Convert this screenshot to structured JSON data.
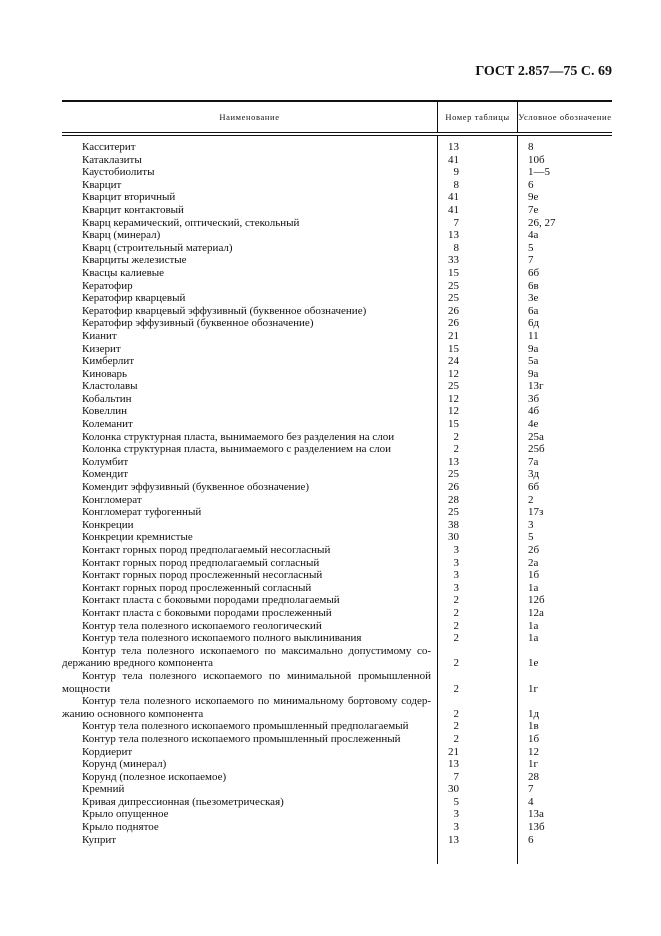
{
  "page_header": "ГОСТ 2.857—75 С. 69",
  "table": {
    "headers": {
      "name": "Наименование",
      "table_no": "Номер таблицы",
      "symbol": "Условное обозначение"
    },
    "rows": [
      {
        "name": [
          "Касситерит"
        ],
        "table_no": "13",
        "symbol": "8"
      },
      {
        "name": [
          "Катаклазиты"
        ],
        "table_no": "41",
        "symbol": "10б"
      },
      {
        "name": [
          "Каустобиолиты"
        ],
        "table_no": "9",
        "symbol": "1—5"
      },
      {
        "name": [
          "Кварцит"
        ],
        "table_no": "8",
        "symbol": "6"
      },
      {
        "name": [
          "Кварцит вторичный"
        ],
        "table_no": "41",
        "symbol": "9е"
      },
      {
        "name": [
          "Кварцит контактовый"
        ],
        "table_no": "41",
        "symbol": "7е"
      },
      {
        "name": [
          "Кварц керамический, оптический, стекольный"
        ],
        "table_no": "7",
        "symbol": "26, 27"
      },
      {
        "name": [
          "Кварц (минерал)"
        ],
        "table_no": "13",
        "symbol": "4а"
      },
      {
        "name": [
          "Кварц (строительный материал)"
        ],
        "table_no": "8",
        "symbol": "5"
      },
      {
        "name": [
          "Кварциты железистые"
        ],
        "table_no": "33",
        "symbol": "7"
      },
      {
        "name": [
          "Квасцы калиевые"
        ],
        "table_no": "15",
        "symbol": "6б"
      },
      {
        "name": [
          "Кератофир"
        ],
        "table_no": "25",
        "symbol": "6в"
      },
      {
        "name": [
          "Кератофир кварцевый"
        ],
        "table_no": "25",
        "symbol": "3е"
      },
      {
        "name": [
          "Кератофир кварцевый эффузивный (буквенное обозначение)"
        ],
        "table_no": "26",
        "symbol": "6а"
      },
      {
        "name": [
          "Кератофир эффузивный (буквенное обозначение)"
        ],
        "table_no": "26",
        "symbol": "6д"
      },
      {
        "name": [
          "Кианит"
        ],
        "table_no": "21",
        "symbol": "11"
      },
      {
        "name": [
          "Кизерит"
        ],
        "table_no": "15",
        "symbol": "9а"
      },
      {
        "name": [
          "Кимберлит"
        ],
        "table_no": "24",
        "symbol": "5а"
      },
      {
        "name": [
          "Киноварь"
        ],
        "table_no": "12",
        "symbol": "9а"
      },
      {
        "name": [
          "Кластолавы"
        ],
        "table_no": "25",
        "symbol": "13г"
      },
      {
        "name": [
          "Кобальтин"
        ],
        "table_no": "12",
        "symbol": "3б"
      },
      {
        "name": [
          "Ковеллин"
        ],
        "table_no": "12",
        "symbol": "4б"
      },
      {
        "name": [
          "Колеманит"
        ],
        "table_no": "15",
        "symbol": "4е"
      },
      {
        "name": [
          "Колонка структурная пласта, вынимаемого без разделения на слои"
        ],
        "table_no": "2",
        "symbol": "25а"
      },
      {
        "name": [
          "Колонка структурная пласта, вынимаемого с разделением на слои"
        ],
        "table_no": "2",
        "symbol": "25б"
      },
      {
        "name": [
          "Колумбит"
        ],
        "table_no": "13",
        "symbol": "7а"
      },
      {
        "name": [
          "Комендит"
        ],
        "table_no": "25",
        "symbol": "3д"
      },
      {
        "name": [
          "Комендит эффузивный (буквенное обозначение)"
        ],
        "table_no": "26",
        "symbol": "6б"
      },
      {
        "name": [
          "Конгломерат"
        ],
        "table_no": "28",
        "symbol": "2"
      },
      {
        "name": [
          "Конгломерат туфогенный"
        ],
        "table_no": "25",
        "symbol": "17з"
      },
      {
        "name": [
          "Конкреции"
        ],
        "table_no": "38",
        "symbol": "3"
      },
      {
        "name": [
          "Конкреции кремнистые"
        ],
        "table_no": "30",
        "symbol": "5"
      },
      {
        "name": [
          "Контакт горных пород предполагаемый несогласный"
        ],
        "table_no": "3",
        "symbol": "2б"
      },
      {
        "name": [
          "Контакт горных пород предполагаемый согласный"
        ],
        "table_no": "3",
        "symbol": "2а"
      },
      {
        "name": [
          "Контакт горных пород прослеженный несогласный"
        ],
        "table_no": "3",
        "symbol": "1б"
      },
      {
        "name": [
          "Контакт горных пород прослеженный согласный"
        ],
        "table_no": "3",
        "symbol": "1а"
      },
      {
        "name": [
          "Контакт пласта с боковыми породами предполагаемый"
        ],
        "table_no": "2",
        "symbol": "12б"
      },
      {
        "name": [
          "Контакт пласта с боковыми породами прослеженный"
        ],
        "table_no": "2",
        "symbol": "12а"
      },
      {
        "name": [
          "Контур тела полезного ископаемого геологический"
        ],
        "table_no": "2",
        "symbol": "1а"
      },
      {
        "name": [
          "Контур тела полезного ископаемого полного выклинивания"
        ],
        "table_no": "2",
        "symbol": "1а"
      },
      {
        "name": [
          "Контур тела полезного ископаемого по максимально допустимому со-",
          "держанию вредного компонента"
        ],
        "table_no": "2",
        "symbol": "1е"
      },
      {
        "name": [
          "Контур тела полезного ископаемого по минимальной промышленной",
          "мощности"
        ],
        "table_no": "2",
        "symbol": "1г"
      },
      {
        "name": [
          "Контур тела полезного ископаемого по минимальному бортовому содер-",
          "жанию основного компонента"
        ],
        "table_no": "2",
        "symbol": "1д"
      },
      {
        "name": [
          "Контур тела полезного ископаемого промышленный предполагаемый"
        ],
        "table_no": "2",
        "symbol": "1в"
      },
      {
        "name": [
          "Контур тела полезного ископаемого промышленный прослеженный"
        ],
        "table_no": "2",
        "symbol": "1б"
      },
      {
        "name": [
          "Кордиерит"
        ],
        "table_no": "21",
        "symbol": "12"
      },
      {
        "name": [
          "Корунд (минерал)"
        ],
        "table_no": "13",
        "symbol": "1г"
      },
      {
        "name": [
          "Корунд (полезное ископаемое)"
        ],
        "table_no": "7",
        "symbol": "28"
      },
      {
        "name": [
          "Кремний"
        ],
        "table_no": "30",
        "symbol": "7"
      },
      {
        "name": [
          "Кривая дипрессионная (пьезометрическая)"
        ],
        "table_no": "5",
        "symbol": "4"
      },
      {
        "name": [
          "Крыло опущенное"
        ],
        "table_no": "3",
        "symbol": "13а"
      },
      {
        "name": [
          "Крыло поднятое"
        ],
        "table_no": "3",
        "symbol": "13б"
      },
      {
        "name": [
          "Куприт"
        ],
        "table_no": "13",
        "symbol": "6"
      }
    ]
  }
}
